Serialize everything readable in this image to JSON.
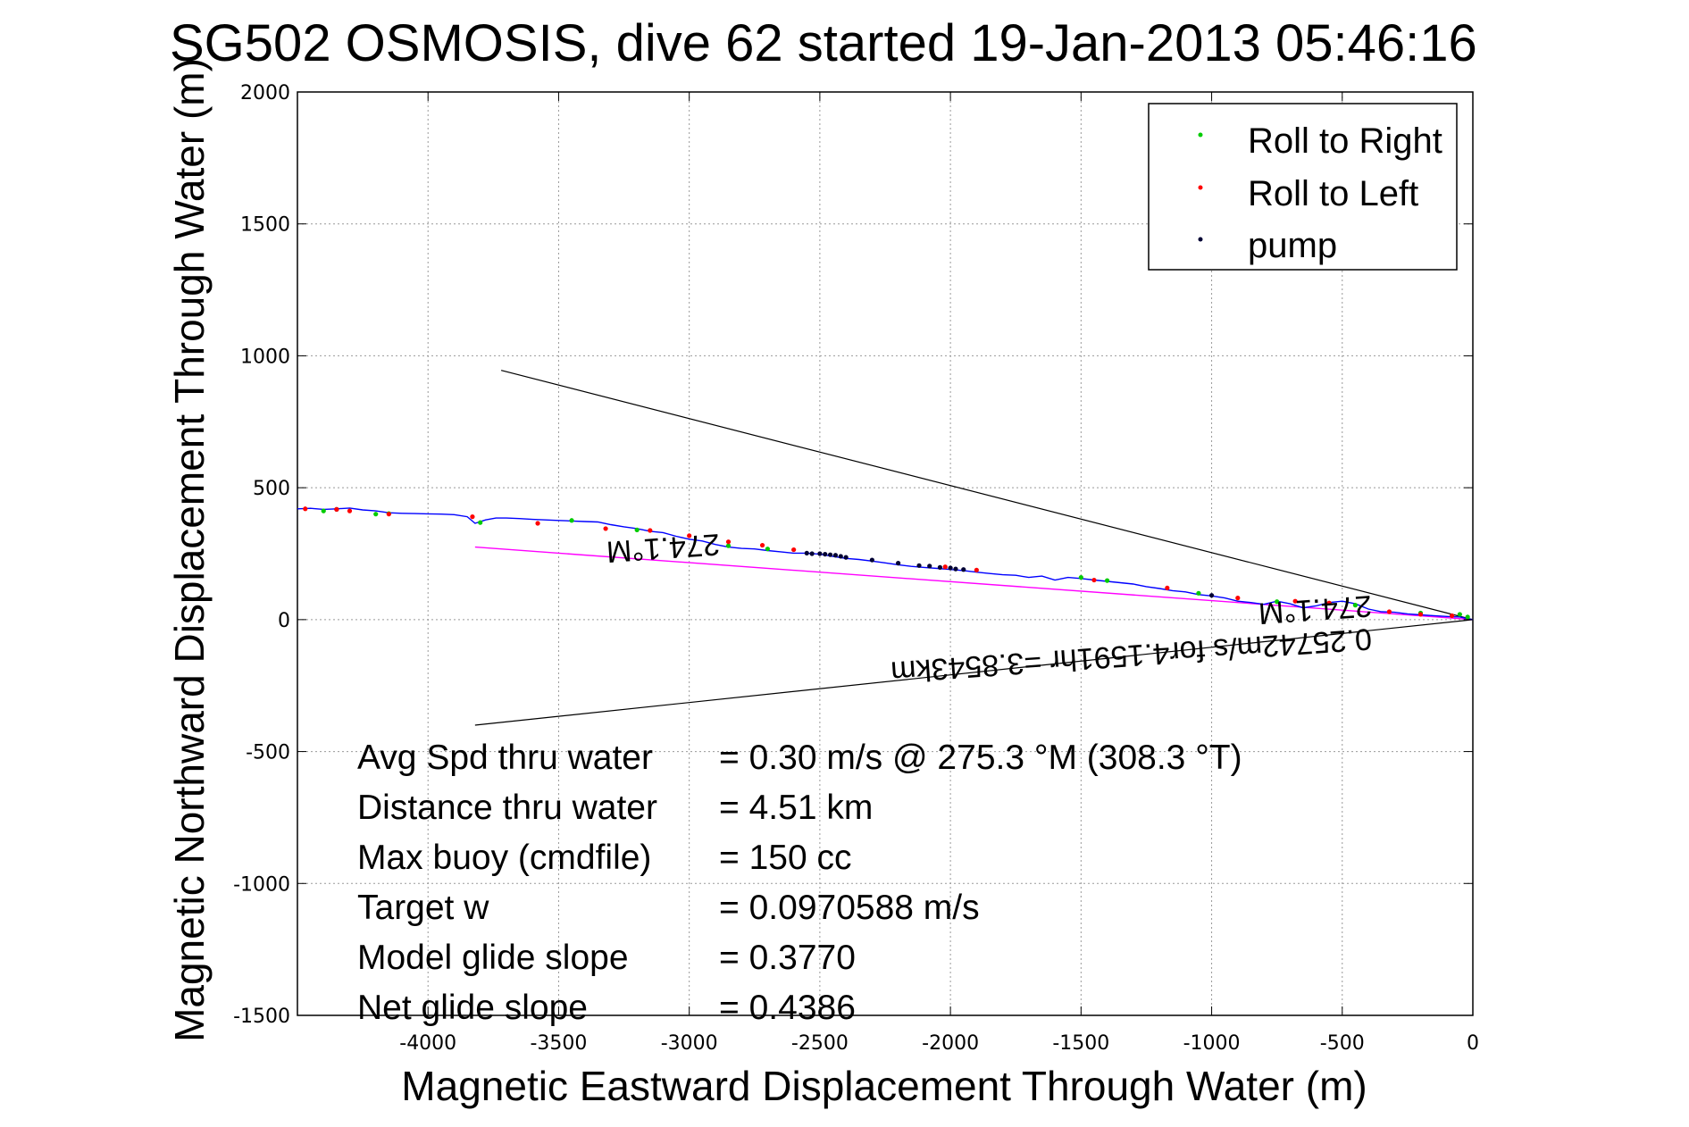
{
  "chart_data": {
    "type": "scatter",
    "title": "SG502 OSMOSIS, dive 62 started 19-Jan-2013 05:46:16",
    "xlabel": "Magnetic Eastward Displacement Through Water (m)",
    "ylabel": "Magnetic Northward Displacement Through Water (m)",
    "xlim": [
      -4500,
      0
    ],
    "ylim": [
      -1500,
      2000
    ],
    "xticks": [
      -4000,
      -3500,
      -3000,
      -2500,
      -2000,
      -1500,
      -1000,
      -500,
      0
    ],
    "yticks": [
      -1500,
      -1000,
      -500,
      0,
      500,
      1000,
      1500,
      2000
    ],
    "grid": true,
    "legend_position": "top-right",
    "legend": [
      {
        "label": "Roll to Right",
        "color": "#00cc00"
      },
      {
        "label": "Roll to Left",
        "color": "#ff0000"
      },
      {
        "label": "pump",
        "color": "#000033"
      }
    ],
    "colors": {
      "track": "#0000ff",
      "current_line": "#ff00ff",
      "cone_lines": "#000000",
      "grid": "#999999"
    },
    "track": {
      "x": [
        -4500,
        -4450,
        -4400,
        -4350,
        -4300,
        -4250,
        -4200,
        -4150,
        -4100,
        -4050,
        -4000,
        -3950,
        -3900,
        -3850,
        -3820,
        -3780,
        -3740,
        -3700,
        -3650,
        -3600,
        -3550,
        -3500,
        -3450,
        -3400,
        -3350,
        -3300,
        -3250,
        -3200,
        -3150,
        -3100,
        -3050,
        -3000,
        -2950,
        -2900,
        -2850,
        -2800,
        -2750,
        -2700,
        -2650,
        -2600,
        -2550,
        -2500,
        -2450,
        -2400,
        -2350,
        -2300,
        -2250,
        -2200,
        -2150,
        -2100,
        -2050,
        -2000,
        -1950,
        -1900,
        -1850,
        -1800,
        -1750,
        -1700,
        -1650,
        -1600,
        -1550,
        -1500,
        -1450,
        -1400,
        -1350,
        -1300,
        -1250,
        -1200,
        -1150,
        -1100,
        -1050,
        -1000,
        -950,
        -900,
        -850,
        -800,
        -750,
        -700,
        -650,
        -600,
        -550,
        -500,
        -450,
        -400,
        -350,
        -300,
        -250,
        -200,
        -150,
        -100,
        -50,
        0
      ],
      "y": [
        420,
        422,
        418,
        420,
        423,
        416,
        412,
        405,
        403,
        402,
        401,
        400,
        398,
        390,
        365,
        378,
        385,
        385,
        383,
        380,
        378,
        376,
        374,
        372,
        370,
        360,
        352,
        345,
        335,
        330,
        316,
        305,
        298,
        285,
        275,
        270,
        268,
        262,
        257,
        252,
        252,
        248,
        240,
        232,
        228,
        222,
        215,
        208,
        202,
        198,
        194,
        190,
        186,
        180,
        175,
        170,
        168,
        160,
        165,
        150,
        160,
        156,
        150,
        145,
        140,
        135,
        125,
        118,
        110,
        105,
        95,
        90,
        82,
        70,
        65,
        58,
        70,
        60,
        45,
        52,
        65,
        70,
        60,
        40,
        30,
        28,
        22,
        18,
        15,
        12,
        10,
        0
      ]
    },
    "roll_right": {
      "x": [
        -4400,
        -4200,
        -4150,
        -3800,
        -3450,
        -3200,
        -2850,
        -2700,
        -1500,
        -1400,
        -1050,
        -750,
        -450,
        -200,
        -50,
        -20
      ],
      "y": [
        412,
        400,
        402,
        368,
        376,
        340,
        280,
        268,
        160,
        148,
        100,
        68,
        55,
        25,
        20,
        10
      ]
    },
    "roll_left": {
      "x": [
        -4470,
        -4350,
        -4300,
        -4150,
        -3830,
        -3580,
        -3320,
        -3150,
        -3000,
        -2850,
        -2720,
        -2600,
        -2020,
        -1900,
        -1450,
        -1170,
        -900,
        -680,
        -550,
        -320,
        -200,
        -80
      ],
      "y": [
        420,
        418,
        412,
        400,
        390,
        365,
        345,
        338,
        318,
        295,
        282,
        265,
        200,
        188,
        150,
        120,
        82,
        70,
        63,
        30,
        20,
        15
      ]
    },
    "pumps": {
      "x": [
        -4350,
        -2550,
        -2530,
        -2500,
        -2480,
        -2460,
        -2440,
        -2420,
        -2400,
        -2300,
        -2200,
        -2120,
        -2080,
        -2040,
        -2000,
        -1980,
        -1950,
        -1000
      ],
      "y": [
        418,
        252,
        250,
        250,
        248,
        246,
        244,
        240,
        236,
        226,
        214,
        205,
        203,
        198,
        196,
        192,
        190,
        92
      ]
    },
    "current_line": {
      "x": [
        -3820,
        0
      ],
      "y": [
        275,
        0
      ]
    },
    "cone_lines": [
      {
        "x": [
          -3720,
          0
        ],
        "y": [
          945,
          0
        ]
      },
      {
        "x": [
          -3820,
          0
        ],
        "y": [
          -400,
          0
        ]
      }
    ],
    "annotations": {
      "heading_label_far": "274.1°M",
      "heading_label_near": "274.1°M",
      "current_label": "0.25742m/s for4.1591hr =3.8543km"
    },
    "stats": [
      {
        "label": "Avg Spd thru water",
        "value": "=  0.30 m/s @ 275.3 °M (308.3 °T)"
      },
      {
        "label": "Distance thru water",
        "value": "=  4.51 km"
      },
      {
        "label": "Max buoy (cmdfile)",
        "value": "= 150 cc"
      },
      {
        "label": "Target w",
        "value": "= 0.0970588 m/s"
      },
      {
        "label": "Model glide slope",
        "value": "= 0.3770"
      },
      {
        "label": "Net glide slope",
        "value": "= 0.4386"
      }
    ]
  }
}
